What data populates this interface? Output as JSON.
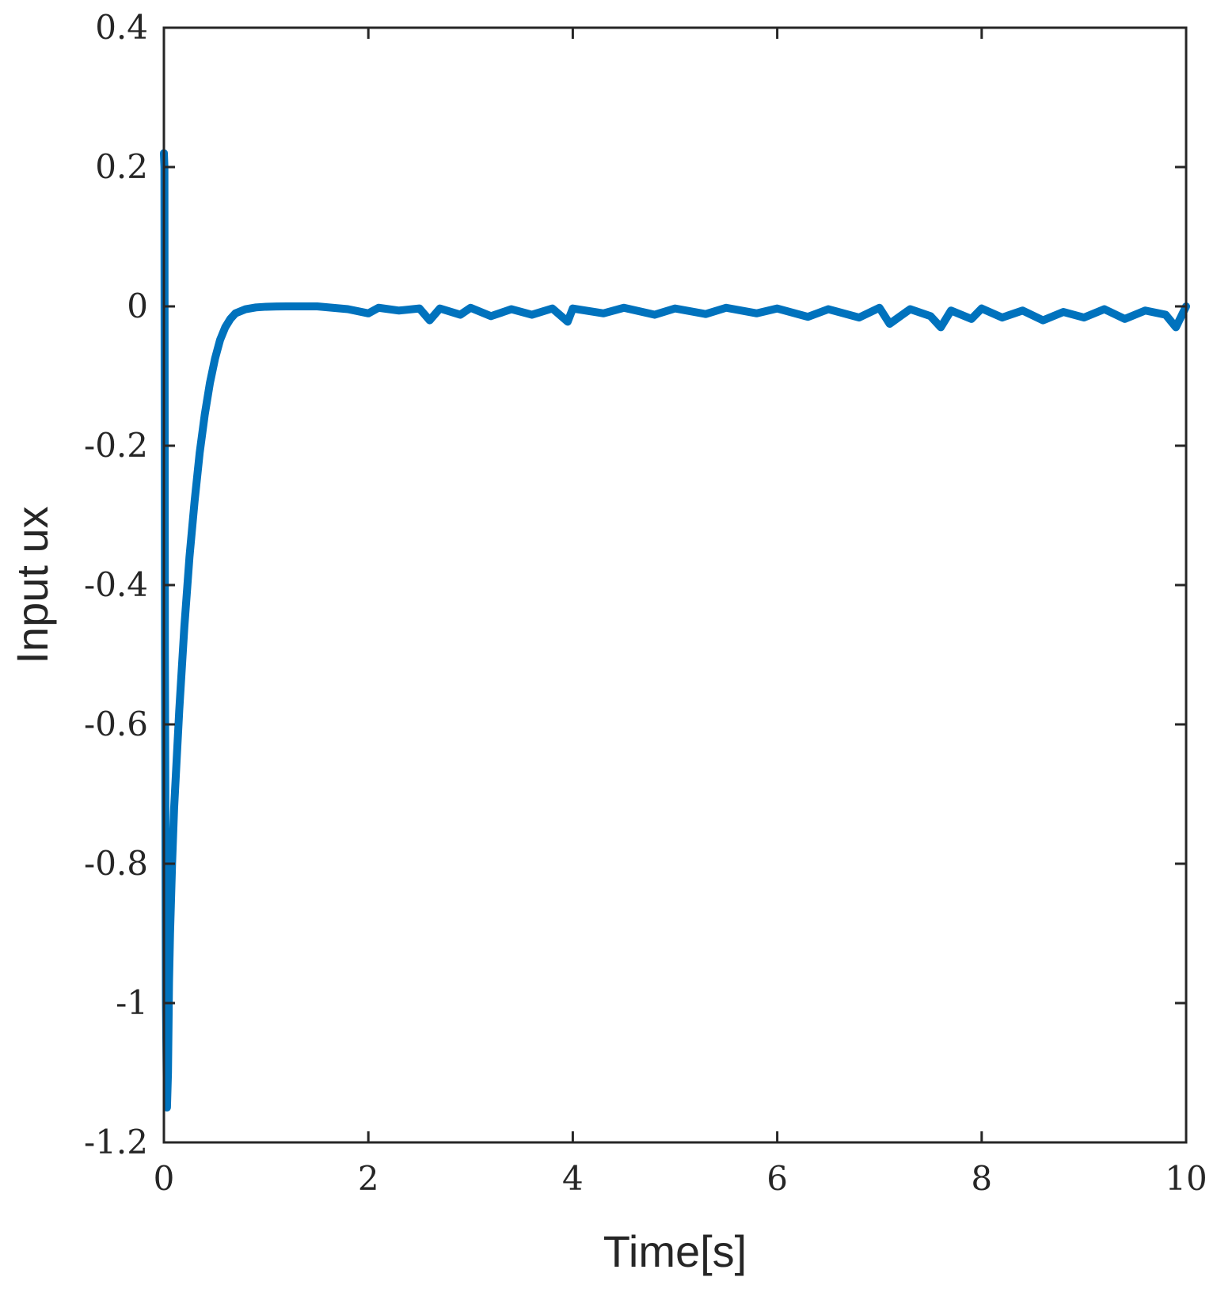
{
  "chart_data": {
    "type": "line",
    "title": "",
    "xlabel": "Time[s]",
    "ylabel": "Input ux",
    "xlim": [
      0,
      10
    ],
    "ylim": [
      -1.2,
      0.4
    ],
    "xticks": [
      0,
      2,
      4,
      6,
      8,
      10
    ],
    "xtick_labels": [
      "0",
      "2",
      "4",
      "6",
      "8",
      "10"
    ],
    "yticks": [
      0.4,
      0.2,
      0,
      -0.2,
      -0.4,
      -0.6,
      -0.8,
      -1,
      -1.2
    ],
    "ytick_labels": [
      "0.4",
      "0.2",
      "0",
      "-0.2",
      "-0.4",
      "-0.6",
      "-0.8",
      "-1",
      "-1.2"
    ],
    "grid": false,
    "legend": "none",
    "series": [
      {
        "color": "#0072BD",
        "x": [
          0,
          0.005,
          0.01,
          0.02,
          0.03,
          0.04,
          0.05,
          0.06,
          0.08,
          0.1,
          0.15,
          0.2,
          0.25,
          0.3,
          0.35,
          0.4,
          0.45,
          0.5,
          0.55,
          0.6,
          0.65,
          0.7,
          0.8,
          0.9,
          1.0,
          1.1,
          1.2,
          1.5,
          1.8,
          2.0,
          2.1,
          2.3,
          2.5,
          2.6,
          2.7,
          2.9,
          3.0,
          3.2,
          3.4,
          3.6,
          3.8,
          3.95,
          4.0,
          4.3,
          4.5,
          4.8,
          5.0,
          5.3,
          5.5,
          5.8,
          6.0,
          6.3,
          6.5,
          6.8,
          7.0,
          7.1,
          7.3,
          7.5,
          7.6,
          7.7,
          7.9,
          8.0,
          8.2,
          8.4,
          8.6,
          8.8,
          9.0,
          9.2,
          9.4,
          9.6,
          9.8,
          9.9,
          10.0
        ],
        "y": [
          0.22,
          0.2,
          -0.5,
          -1.0,
          -1.15,
          -1.1,
          -0.97,
          -0.9,
          -0.8,
          -0.72,
          -0.58,
          -0.46,
          -0.36,
          -0.28,
          -0.21,
          -0.155,
          -0.11,
          -0.075,
          -0.048,
          -0.03,
          -0.018,
          -0.01,
          -0.004,
          -0.0015,
          -0.0005,
          -0.0002,
          0,
          0,
          -0.004,
          -0.01,
          -0.002,
          -0.006,
          -0.003,
          -0.02,
          -0.003,
          -0.012,
          -0.002,
          -0.014,
          -0.004,
          -0.012,
          -0.003,
          -0.022,
          -0.003,
          -0.01,
          -0.002,
          -0.012,
          -0.003,
          -0.011,
          -0.002,
          -0.01,
          -0.003,
          -0.015,
          -0.004,
          -0.016,
          -0.002,
          -0.025,
          -0.004,
          -0.014,
          -0.03,
          -0.006,
          -0.018,
          -0.003,
          -0.016,
          -0.006,
          -0.02,
          -0.008,
          -0.016,
          -0.004,
          -0.018,
          -0.006,
          -0.012,
          -0.03,
          0
        ]
      }
    ]
  }
}
